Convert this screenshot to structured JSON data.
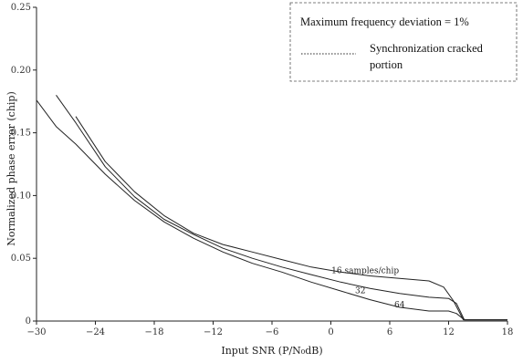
{
  "chart_data": {
    "type": "line",
    "title": "",
    "xlabel": "Input SNR  (P/N₀dB)",
    "ylabel": "Normalized phase error  (chip)",
    "xlim": [
      -30,
      18
    ],
    "ylim": [
      0,
      0.25
    ],
    "xticks": [
      "−30",
      "−24",
      "−18",
      "−12",
      "−6",
      "0",
      "6",
      "12",
      "18"
    ],
    "yticks": [
      "0",
      "0.05",
      "0.10",
      "0.15",
      "0.20",
      "0.25"
    ],
    "legend": {
      "placement": "top-right",
      "header": "Maximum frequency deviation = 1%",
      "entry_line1": "Synchronization cracked",
      "entry_line2": "portion"
    },
    "series": [
      {
        "name": "16 samples/chip",
        "x": [
          -26,
          -23,
          -20,
          -17,
          -14,
          -11,
          -8,
          -5,
          -2,
          1,
          4,
          7,
          10,
          11.5,
          12.5,
          13.5,
          18
        ],
        "y": [
          0.163,
          0.127,
          0.103,
          0.084,
          0.07,
          0.061,
          0.055,
          0.049,
          0.043,
          0.039,
          0.036,
          0.034,
          0.032,
          0.027,
          0.016,
          0.001,
          0.001
        ]
      },
      {
        "name": "32",
        "x": [
          -28,
          -26,
          -23,
          -20,
          -17,
          -14,
          -11,
          -8,
          -5,
          -2,
          1,
          4,
          7,
          10,
          12,
          12.8,
          13.6,
          18
        ],
        "y": [
          0.18,
          0.158,
          0.123,
          0.099,
          0.081,
          0.069,
          0.058,
          0.05,
          0.043,
          0.037,
          0.031,
          0.026,
          0.022,
          0.019,
          0.018,
          0.014,
          0.001,
          0.001
        ]
      },
      {
        "name": "64",
        "x": [
          -30,
          -28,
          -26,
          -23,
          -20,
          -17,
          -14,
          -11,
          -8,
          -5,
          -2,
          1,
          4,
          7,
          10,
          12,
          12.8,
          13.6,
          18
        ],
        "y": [
          0.176,
          0.155,
          0.141,
          0.117,
          0.096,
          0.079,
          0.066,
          0.055,
          0.046,
          0.039,
          0.031,
          0.024,
          0.017,
          0.011,
          0.008,
          0.008,
          0.006,
          0.001,
          0.001
        ]
      }
    ],
    "labels": {
      "s16": "16 samples/chip",
      "s32": "32",
      "s64": "64"
    },
    "label_positions": [
      {
        "key": "s16",
        "x": 3.5,
        "y": 0.038
      },
      {
        "key": "s32",
        "x": 3.0,
        "y": 0.022
      },
      {
        "key": "s64",
        "x": 7.0,
        "y": 0.011
      }
    ]
  }
}
